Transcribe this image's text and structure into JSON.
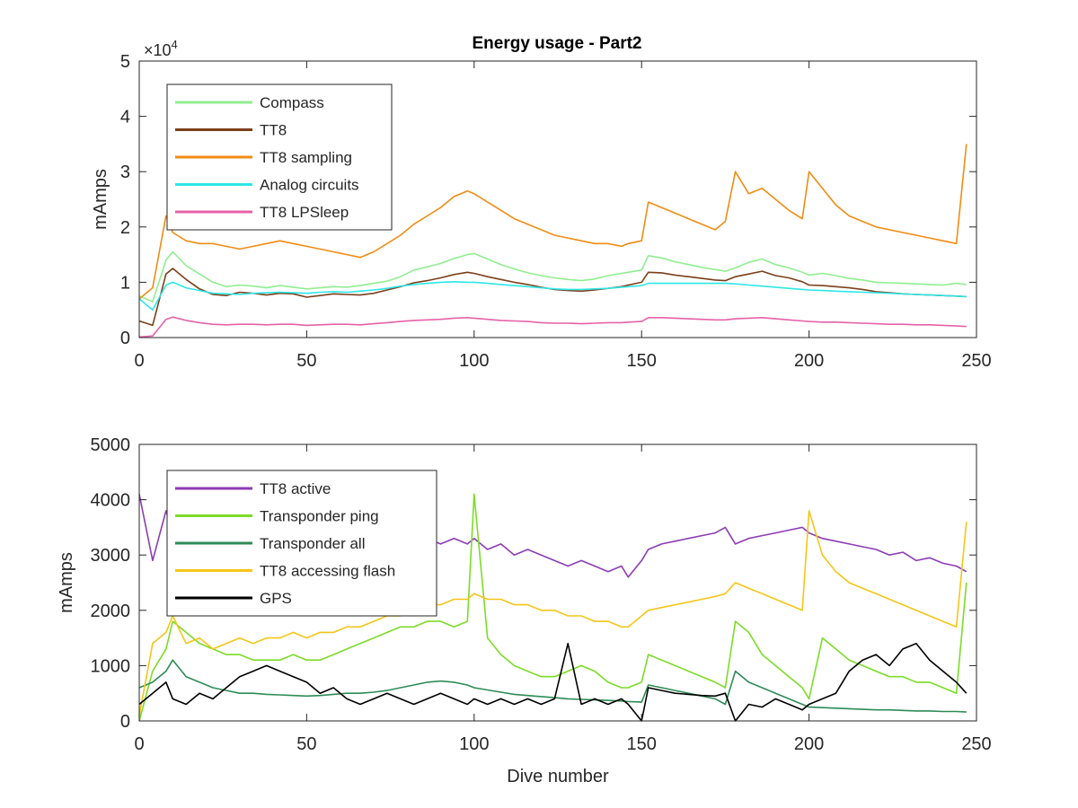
{
  "figure": {
    "title": "Energy usage - Part2"
  },
  "chart_data": [
    {
      "type": "line",
      "title": "Energy usage - Part2",
      "xlabel": "",
      "ylabel": "mAmps",
      "xlim": [
        0,
        250
      ],
      "ylim": [
        0,
        50000
      ],
      "xticks": [
        0,
        50,
        100,
        150,
        200,
        250
      ],
      "xtick_labels": [
        "0",
        "50",
        "100",
        "150",
        "200",
        "250"
      ],
      "yticks": [
        0,
        10000,
        20000,
        30000,
        40000,
        50000
      ],
      "ytick_labels": [
        "0",
        "1",
        "2",
        "3",
        "4",
        "5"
      ],
      "y_exponent_label": "×10",
      "y_exponent_power": "4",
      "grid": false,
      "legend_position": "top-left",
      "x": [
        0,
        4,
        8,
        10,
        14,
        18,
        22,
        26,
        30,
        34,
        38,
        42,
        46,
        50,
        54,
        58,
        62,
        66,
        70,
        74,
        78,
        82,
        86,
        90,
        94,
        98,
        100,
        104,
        108,
        112,
        116,
        120,
        124,
        128,
        132,
        136,
        140,
        144,
        146,
        150,
        152,
        156,
        160,
        164,
        168,
        172,
        175,
        178,
        182,
        186,
        190,
        194,
        198,
        200,
        204,
        208,
        212,
        216,
        220,
        224,
        228,
        232,
        236,
        240,
        244,
        247
      ],
      "series": [
        {
          "name": "Compass",
          "color": "#90ee90",
          "values": [
            7500,
            6500,
            14000,
            15500,
            13000,
            11500,
            10000,
            9200,
            9500,
            9300,
            9000,
            9400,
            9100,
            8800,
            9000,
            9200,
            9100,
            9400,
            9800,
            10200,
            11000,
            12200,
            12800,
            13400,
            14300,
            15000,
            15200,
            14200,
            13200,
            12400,
            11700,
            11200,
            10800,
            10500,
            10300,
            10600,
            11200,
            11600,
            11800,
            12200,
            14800,
            14400,
            13700,
            13200,
            12700,
            12300,
            12000,
            12600,
            13600,
            14200,
            13200,
            12600,
            11800,
            11300,
            11600,
            11200,
            10700,
            10400,
            10000,
            9900,
            9800,
            9700,
            9600,
            9500,
            9800,
            9600
          ]
        },
        {
          "name": "TT8",
          "color": "#7b3f1a",
          "values": [
            3000,
            2200,
            11500,
            12500,
            10500,
            8800,
            7800,
            7600,
            8200,
            8000,
            7700,
            8000,
            7900,
            7300,
            7600,
            7900,
            7800,
            7700,
            8000,
            8600,
            9200,
            9900,
            10300,
            10800,
            11400,
            11800,
            11600,
            11000,
            10500,
            10000,
            9600,
            9100,
            8700,
            8500,
            8400,
            8600,
            8900,
            9200,
            9500,
            10000,
            11800,
            11700,
            11300,
            11000,
            10700,
            10400,
            10300,
            11000,
            11500,
            12000,
            11200,
            10800,
            10100,
            9500,
            9400,
            9200,
            9000,
            8700,
            8300,
            8100,
            7900,
            7800,
            7700,
            7600,
            7500,
            7400
          ]
        },
        {
          "name": "TT8 sampling",
          "color": "#f08c14",
          "values": [
            7000,
            9000,
            22000,
            19000,
            17500,
            17000,
            17000,
            16500,
            16000,
            16500,
            17000,
            17500,
            17000,
            16500,
            16000,
            15500,
            15000,
            14500,
            15500,
            17000,
            18500,
            20500,
            22000,
            23500,
            25500,
            26500,
            26000,
            24500,
            23000,
            21500,
            20500,
            19500,
            18500,
            18000,
            17500,
            17000,
            17000,
            16500,
            17000,
            17500,
            24500,
            23500,
            22500,
            21500,
            20500,
            19500,
            21000,
            30000,
            26000,
            27000,
            25000,
            23000,
            21500,
            30000,
            27000,
            24000,
            22000,
            21000,
            20000,
            19500,
            19000,
            18500,
            18000,
            17500,
            17000,
            35000
          ]
        },
        {
          "name": "Analog circuits",
          "color": "#2ee6e6",
          "values": [
            7000,
            5000,
            9500,
            10000,
            9000,
            8500,
            8000,
            7900,
            7800,
            8000,
            8100,
            8200,
            8100,
            8000,
            8200,
            8300,
            8200,
            8400,
            8600,
            8900,
            9300,
            9600,
            9800,
            10000,
            10100,
            10000,
            10000,
            9800,
            9600,
            9400,
            9200,
            9000,
            8800,
            8700,
            8700,
            8800,
            8900,
            9100,
            9200,
            9400,
            9800,
            9800,
            9800,
            9800,
            9800,
            9800,
            9800,
            9700,
            9500,
            9300,
            9100,
            8900,
            8700,
            8600,
            8500,
            8400,
            8300,
            8200,
            8100,
            8000,
            7900,
            7800,
            7700,
            7600,
            7500,
            7400
          ]
        },
        {
          "name": "TT8 LPSleep",
          "color": "#e562a8",
          "values": [
            100,
            300,
            3300,
            3700,
            3100,
            2700,
            2400,
            2300,
            2400,
            2400,
            2300,
            2400,
            2400,
            2200,
            2300,
            2400,
            2400,
            2300,
            2500,
            2700,
            2900,
            3100,
            3200,
            3300,
            3500,
            3600,
            3500,
            3300,
            3100,
            3000,
            2900,
            2700,
            2600,
            2600,
            2500,
            2600,
            2700,
            2700,
            2800,
            2900,
            3600,
            3600,
            3500,
            3400,
            3300,
            3200,
            3200,
            3400,
            3500,
            3600,
            3400,
            3200,
            3000,
            2900,
            2800,
            2800,
            2700,
            2600,
            2500,
            2400,
            2400,
            2300,
            2300,
            2200,
            2100,
            2000
          ]
        }
      ]
    },
    {
      "type": "line",
      "title": "",
      "xlabel": "Dive number",
      "ylabel": "mAmps",
      "xlim": [
        0,
        250
      ],
      "ylim": [
        0,
        5000
      ],
      "xticks": [
        0,
        50,
        100,
        150,
        200,
        250
      ],
      "xtick_labels": [
        "0",
        "50",
        "100",
        "150",
        "200",
        "250"
      ],
      "yticks": [
        0,
        1000,
        2000,
        3000,
        4000,
        5000
      ],
      "ytick_labels": [
        "0",
        "1000",
        "2000",
        "3000",
        "4000",
        "5000"
      ],
      "grid": false,
      "legend_position": "top-left",
      "x": [
        0,
        4,
        8,
        10,
        14,
        18,
        22,
        26,
        30,
        34,
        38,
        42,
        46,
        50,
        54,
        58,
        62,
        66,
        70,
        74,
        78,
        82,
        86,
        90,
        94,
        98,
        100,
        104,
        108,
        112,
        116,
        120,
        124,
        128,
        132,
        136,
        140,
        144,
        146,
        150,
        152,
        156,
        160,
        164,
        168,
        172,
        175,
        178,
        182,
        186,
        190,
        194,
        198,
        200,
        204,
        208,
        212,
        216,
        220,
        224,
        228,
        232,
        236,
        240,
        244,
        247
      ],
      "series": [
        {
          "name": "TT8 active",
          "color": "#8c3cb4",
          "values": [
            4100,
            2900,
            3800,
            3400,
            2700,
            2900,
            3000,
            3200,
            3000,
            3100,
            3200,
            3000,
            3200,
            3300,
            3000,
            3200,
            3100,
            3300,
            3100,
            3200,
            3300,
            3100,
            3300,
            3200,
            3300,
            3200,
            3300,
            3100,
            3200,
            3000,
            3100,
            3000,
            2900,
            2800,
            2900,
            2800,
            2700,
            2800,
            2600,
            2900,
            3100,
            3200,
            3250,
            3300,
            3350,
            3400,
            3500,
            3200,
            3300,
            3350,
            3400,
            3450,
            3500,
            3400,
            3300,
            3250,
            3200,
            3150,
            3100,
            3000,
            3050,
            2900,
            2950,
            2850,
            2800,
            2700
          ]
        },
        {
          "name": "Transponder ping",
          "color": "#7cdc28",
          "values": [
            0,
            900,
            1300,
            1800,
            1600,
            1400,
            1300,
            1200,
            1200,
            1100,
            1100,
            1100,
            1200,
            1100,
            1100,
            1200,
            1300,
            1400,
            1500,
            1600,
            1700,
            1700,
            1800,
            1800,
            1700,
            1800,
            4100,
            1500,
            1200,
            1000,
            900,
            800,
            800,
            900,
            1000,
            900,
            700,
            600,
            600,
            700,
            1200,
            1100,
            1000,
            900,
            800,
            700,
            600,
            1800,
            1600,
            1200,
            1000,
            800,
            600,
            400,
            1500,
            1300,
            1100,
            1000,
            900,
            800,
            800,
            700,
            700,
            600,
            500,
            2500
          ]
        },
        {
          "name": "Transponder all",
          "color": "#2e8b57",
          "values": [
            600,
            700,
            900,
            1100,
            800,
            700,
            600,
            550,
            500,
            500,
            480,
            470,
            460,
            450,
            460,
            480,
            500,
            500,
            520,
            550,
            600,
            650,
            700,
            720,
            700,
            650,
            600,
            560,
            520,
            480,
            460,
            440,
            420,
            400,
            390,
            380,
            370,
            360,
            350,
            340,
            650,
            600,
            550,
            500,
            450,
            400,
            300,
            900,
            700,
            600,
            500,
            400,
            300,
            250,
            240,
            230,
            220,
            210,
            200,
            200,
            190,
            180,
            180,
            170,
            170,
            160
          ]
        },
        {
          "name": "TT8 accessing flash",
          "color": "#f5c518",
          "values": [
            100,
            1400,
            1600,
            1900,
            1400,
            1500,
            1300,
            1400,
            1500,
            1400,
            1500,
            1500,
            1600,
            1500,
            1600,
            1600,
            1700,
            1700,
            1800,
            1900,
            1900,
            2000,
            2100,
            2100,
            2200,
            2200,
            2300,
            2200,
            2200,
            2100,
            2100,
            2000,
            2000,
            1900,
            1900,
            1800,
            1800,
            1700,
            1700,
            1900,
            2000,
            2050,
            2100,
            2150,
            2200,
            2250,
            2300,
            2500,
            2400,
            2300,
            2200,
            2100,
            2000,
            3800,
            3000,
            2700,
            2500,
            2400,
            2300,
            2200,
            2100,
            2000,
            1900,
            1800,
            1700,
            3600
          ]
        },
        {
          "name": "GPS",
          "color": "#000000",
          "values": [
            300,
            500,
            700,
            400,
            300,
            500,
            400,
            600,
            800,
            900,
            1000,
            900,
            800,
            700,
            500,
            600,
            400,
            300,
            400,
            500,
            400,
            300,
            400,
            500,
            400,
            300,
            400,
            300,
            400,
            300,
            400,
            300,
            400,
            1400,
            300,
            400,
            300,
            400,
            300,
            0,
            600,
            550,
            500,
            480,
            460,
            450,
            500,
            0,
            300,
            250,
            400,
            300,
            200,
            300,
            400,
            500,
            900,
            1100,
            1200,
            1000,
            1300,
            1400,
            1100,
            900,
            700,
            500
          ]
        }
      ]
    }
  ]
}
